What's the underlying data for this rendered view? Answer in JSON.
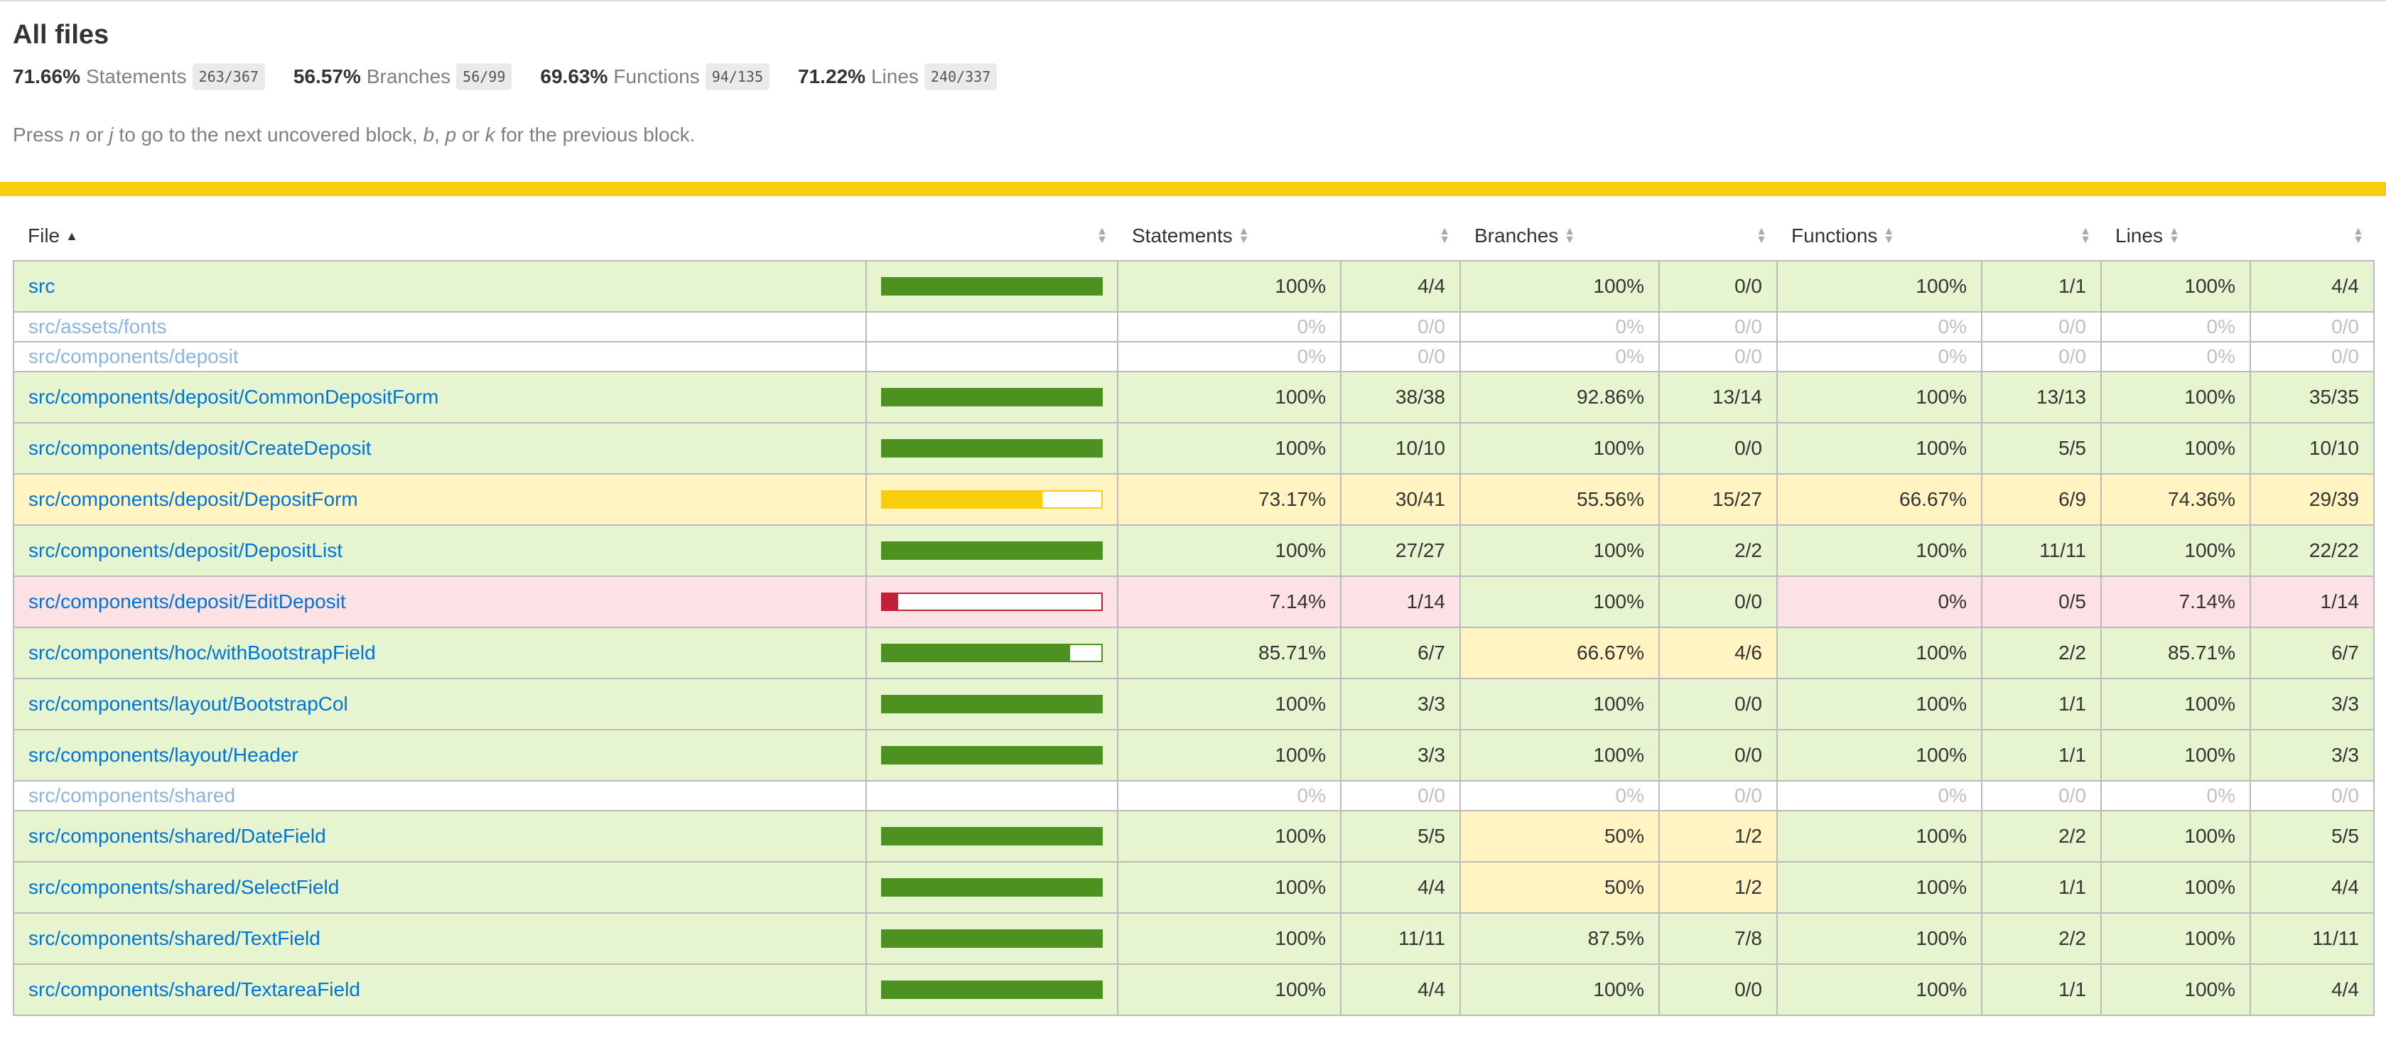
{
  "page": {
    "title": "All files",
    "hint_parts": [
      "Press ",
      "n",
      " or ",
      "j",
      " to go to the next uncovered block, ",
      "b",
      ", ",
      "p",
      " or ",
      "k",
      " for the previous block."
    ]
  },
  "summary": [
    {
      "pct": "71.66%",
      "label": "Statements",
      "fraction": "263/367"
    },
    {
      "pct": "56.57%",
      "label": "Branches",
      "fraction": "56/99"
    },
    {
      "pct": "69.63%",
      "label": "Functions",
      "fraction": "94/135"
    },
    {
      "pct": "71.22%",
      "label": "Lines",
      "fraction": "240/337"
    }
  ],
  "table": {
    "headers": {
      "file": "File",
      "statements": "Statements",
      "branches": "Branches",
      "functions": "Functions",
      "lines": "Lines"
    },
    "rows": [
      {
        "file": "src",
        "status": "high",
        "bar": 100,
        "stmt_pct": "100%",
        "stmt_frac": "4/4",
        "br_pct": "100%",
        "br_frac": "0/0",
        "br_status": "high",
        "fn_pct": "100%",
        "fn_frac": "1/1",
        "fn_status": "high",
        "ln_pct": "100%",
        "ln_frac": "4/4",
        "ln_status": "high"
      },
      {
        "file": "src/assets/fonts",
        "status": "empty",
        "bar": null,
        "stmt_pct": "0%",
        "stmt_frac": "0/0",
        "br_pct": "0%",
        "br_frac": "0/0",
        "br_status": "empty",
        "fn_pct": "0%",
        "fn_frac": "0/0",
        "fn_status": "empty",
        "ln_pct": "0%",
        "ln_frac": "0/0",
        "ln_status": "empty"
      },
      {
        "file": "src/components/deposit",
        "status": "empty",
        "bar": null,
        "stmt_pct": "0%",
        "stmt_frac": "0/0",
        "br_pct": "0%",
        "br_frac": "0/0",
        "br_status": "empty",
        "fn_pct": "0%",
        "fn_frac": "0/0",
        "fn_status": "empty",
        "ln_pct": "0%",
        "ln_frac": "0/0",
        "ln_status": "empty"
      },
      {
        "file": "src/components/deposit/CommonDepositForm",
        "status": "high",
        "bar": 100,
        "stmt_pct": "100%",
        "stmt_frac": "38/38",
        "br_pct": "92.86%",
        "br_frac": "13/14",
        "br_status": "high",
        "fn_pct": "100%",
        "fn_frac": "13/13",
        "fn_status": "high",
        "ln_pct": "100%",
        "ln_frac": "35/35",
        "ln_status": "high"
      },
      {
        "file": "src/components/deposit/CreateDeposit",
        "status": "high",
        "bar": 100,
        "stmt_pct": "100%",
        "stmt_frac": "10/10",
        "br_pct": "100%",
        "br_frac": "0/0",
        "br_status": "high",
        "fn_pct": "100%",
        "fn_frac": "5/5",
        "fn_status": "high",
        "ln_pct": "100%",
        "ln_frac": "10/10",
        "ln_status": "high"
      },
      {
        "file": "src/components/deposit/DepositForm",
        "status": "medium",
        "bar": 73.17,
        "stmt_pct": "73.17%",
        "stmt_frac": "30/41",
        "br_pct": "55.56%",
        "br_frac": "15/27",
        "br_status": "medium",
        "fn_pct": "66.67%",
        "fn_frac": "6/9",
        "fn_status": "medium",
        "ln_pct": "74.36%",
        "ln_frac": "29/39",
        "ln_status": "medium"
      },
      {
        "file": "src/components/deposit/DepositList",
        "status": "high",
        "bar": 100,
        "stmt_pct": "100%",
        "stmt_frac": "27/27",
        "br_pct": "100%",
        "br_frac": "2/2",
        "br_status": "high",
        "fn_pct": "100%",
        "fn_frac": "11/11",
        "fn_status": "high",
        "ln_pct": "100%",
        "ln_frac": "22/22",
        "ln_status": "high"
      },
      {
        "file": "src/components/deposit/EditDeposit",
        "status": "low",
        "bar": 7.14,
        "stmt_pct": "7.14%",
        "stmt_frac": "1/14",
        "br_pct": "100%",
        "br_frac": "0/0",
        "br_status": "high",
        "fn_pct": "0%",
        "fn_frac": "0/5",
        "fn_status": "low",
        "ln_pct": "7.14%",
        "ln_frac": "1/14",
        "ln_status": "low"
      },
      {
        "file": "src/components/hoc/withBootstrapField",
        "status": "high",
        "bar": 85.71,
        "stmt_pct": "85.71%",
        "stmt_frac": "6/7",
        "br_pct": "66.67%",
        "br_frac": "4/6",
        "br_status": "medium",
        "fn_pct": "100%",
        "fn_frac": "2/2",
        "fn_status": "high",
        "ln_pct": "85.71%",
        "ln_frac": "6/7",
        "ln_status": "high"
      },
      {
        "file": "src/components/layout/BootstrapCol",
        "status": "high",
        "bar": 100,
        "stmt_pct": "100%",
        "stmt_frac": "3/3",
        "br_pct": "100%",
        "br_frac": "0/0",
        "br_status": "high",
        "fn_pct": "100%",
        "fn_frac": "1/1",
        "fn_status": "high",
        "ln_pct": "100%",
        "ln_frac": "3/3",
        "ln_status": "high"
      },
      {
        "file": "src/components/layout/Header",
        "status": "high",
        "bar": 100,
        "stmt_pct": "100%",
        "stmt_frac": "3/3",
        "br_pct": "100%",
        "br_frac": "0/0",
        "br_status": "high",
        "fn_pct": "100%",
        "fn_frac": "1/1",
        "fn_status": "high",
        "ln_pct": "100%",
        "ln_frac": "3/3",
        "ln_status": "high"
      },
      {
        "file": "src/components/shared",
        "status": "empty",
        "bar": null,
        "stmt_pct": "0%",
        "stmt_frac": "0/0",
        "br_pct": "0%",
        "br_frac": "0/0",
        "br_status": "empty",
        "fn_pct": "0%",
        "fn_frac": "0/0",
        "fn_status": "empty",
        "ln_pct": "0%",
        "ln_frac": "0/0",
        "ln_status": "empty"
      },
      {
        "file": "src/components/shared/DateField",
        "status": "high",
        "bar": 100,
        "stmt_pct": "100%",
        "stmt_frac": "5/5",
        "br_pct": "50%",
        "br_frac": "1/2",
        "br_status": "medium",
        "fn_pct": "100%",
        "fn_frac": "2/2",
        "fn_status": "high",
        "ln_pct": "100%",
        "ln_frac": "5/5",
        "ln_status": "high"
      },
      {
        "file": "src/components/shared/SelectField",
        "status": "high",
        "bar": 100,
        "stmt_pct": "100%",
        "stmt_frac": "4/4",
        "br_pct": "50%",
        "br_frac": "1/2",
        "br_status": "medium",
        "fn_pct": "100%",
        "fn_frac": "1/1",
        "fn_status": "high",
        "ln_pct": "100%",
        "ln_frac": "4/4",
        "ln_status": "high"
      },
      {
        "file": "src/components/shared/TextField",
        "status": "high",
        "bar": 100,
        "stmt_pct": "100%",
        "stmt_frac": "11/11",
        "br_pct": "87.5%",
        "br_frac": "7/8",
        "br_status": "high",
        "fn_pct": "100%",
        "fn_frac": "2/2",
        "fn_status": "high",
        "ln_pct": "100%",
        "ln_frac": "11/11",
        "ln_status": "high"
      },
      {
        "file": "src/components/shared/TextareaField",
        "status": "high",
        "bar": 100,
        "stmt_pct": "100%",
        "stmt_frac": "4/4",
        "br_pct": "100%",
        "br_frac": "0/0",
        "br_status": "high",
        "fn_pct": "100%",
        "fn_frac": "1/1",
        "fn_status": "high",
        "ln_pct": "100%",
        "ln_frac": "4/4",
        "ln_status": "high"
      }
    ]
  },
  "colors": {
    "high": "#4d9221",
    "medium": "#f9cd0b",
    "low": "#c21f39",
    "link": "#0074d9"
  }
}
